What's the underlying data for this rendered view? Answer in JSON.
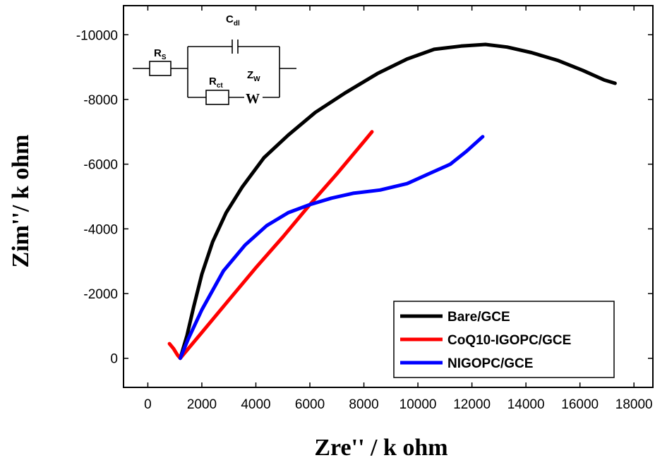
{
  "chart_data": {
    "type": "line",
    "xlabel": "Zre'' / k ohm",
    "ylabel": "Zim''/ k ohm",
    "xlim": [
      -900,
      18700
    ],
    "ylim": [
      -10900,
      900
    ],
    "y_reversed": true,
    "xticks": [
      0,
      2000,
      4000,
      6000,
      8000,
      10000,
      12000,
      14000,
      16000,
      18000
    ],
    "xtick_labels": [
      "0",
      "2000",
      "4000",
      "6000",
      "8000",
      "10000",
      "12000",
      "14000",
      "16000",
      "18000"
    ],
    "yticks": [
      0,
      -2000,
      -4000,
      -6000,
      -8000,
      -10000
    ],
    "ytick_labels": [
      "0",
      "-2000",
      "-4000",
      "-6000",
      "-8000",
      "-10000"
    ],
    "grid": false,
    "legend_position": "bottom-right",
    "series": [
      {
        "name": "Bare/GCE",
        "color": "#000000",
        "x": [
          1200,
          1450,
          1700,
          2000,
          2400,
          2900,
          3500,
          4300,
          5200,
          6200,
          7300,
          8500,
          9600,
          10600,
          11600,
          12500,
          13300,
          14200,
          15200,
          16100,
          16900,
          17300
        ],
        "y": [
          0,
          -700,
          -1600,
          -2600,
          -3600,
          -4500,
          -5300,
          -6200,
          -6900,
          -7600,
          -8200,
          -8800,
          -9250,
          -9550,
          -9650,
          -9700,
          -9620,
          -9450,
          -9200,
          -8900,
          -8600,
          -8500
        ]
      },
      {
        "name": "CoQ10-IGOPC/GCE",
        "color": "#ff0000",
        "x": [
          800,
          950,
          1100,
          1200,
          2000,
          3000,
          4000,
          5000,
          6000,
          7000,
          8000,
          8300
        ],
        "y": [
          -450,
          -300,
          -100,
          0,
          -800,
          -1800,
          -2800,
          -3750,
          -4750,
          -5700,
          -6700,
          -7000
        ]
      },
      {
        "name": "NIGOPC/GCE",
        "color": "#0000ff",
        "x": [
          1200,
          1500,
          2000,
          2800,
          3600,
          4400,
          5200,
          6000,
          6800,
          7600,
          8600,
          9600,
          10400,
          11200,
          11800,
          12400
        ],
        "y": [
          0,
          -600,
          -1500,
          -2700,
          -3500,
          -4100,
          -4500,
          -4750,
          -4950,
          -5100,
          -5200,
          -5400,
          -5700,
          -6000,
          -6400,
          -6850
        ]
      }
    ],
    "inset_circuit": {
      "rs": "R",
      "rs_sub": "S",
      "cdl": "C",
      "cdl_sub": "dl",
      "rct": "R",
      "rct_sub": "ct",
      "zw": "Z",
      "zw_sub": "W",
      "warburg": "W"
    }
  }
}
